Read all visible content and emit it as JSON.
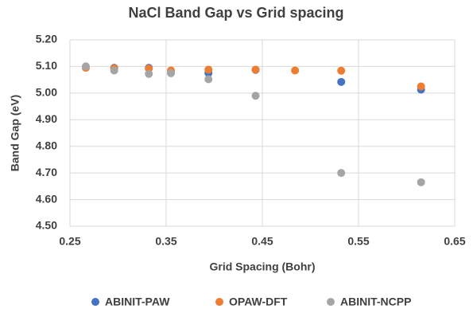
{
  "chart_data": {
    "type": "scatter",
    "title": "NaCl Band Gap vs Grid spacing",
    "xlabel": "Grid Spacing (Bohr)",
    "ylabel": "Band Gap (eV)",
    "xlim": [
      0.25,
      0.65
    ],
    "xticks": [
      0.25,
      0.35,
      0.45,
      0.55,
      0.65
    ],
    "ylim": [
      4.5,
      5.2
    ],
    "yticks": [
      {
        "value": 4.5,
        "label": "4.50"
      },
      {
        "value": 4.6,
        "label": "4.60"
      },
      {
        "value": 4.7,
        "label": "4.70"
      },
      {
        "value": 4.8,
        "label": "4.80"
      },
      {
        "value": 4.9,
        "label": "4.90"
      },
      {
        "value": 5.0,
        "label": "5.00"
      },
      {
        "value": 5.1,
        "label": "5.10"
      },
      {
        "value": 5.2,
        "label": "5.20"
      }
    ],
    "grid": true,
    "legend": "bottom",
    "series": [
      {
        "name": "ABINIT-PAW",
        "color": "#4472c4",
        "x": [
          0.296,
          0.332,
          0.355,
          0.394,
          0.443,
          0.532,
          0.615
        ],
        "values": [
          5.095,
          5.095,
          5.075,
          5.075,
          5.087,
          5.042,
          5.013
        ]
      },
      {
        "name": "OPAW-DFT",
        "color": "#ed7d31",
        "x": [
          0.2665,
          0.296,
          0.332,
          0.355,
          0.394,
          0.443,
          0.484,
          0.532,
          0.615
        ],
        "values": [
          5.095,
          5.093,
          5.092,
          5.085,
          5.088,
          5.088,
          5.085,
          5.084,
          5.025
        ]
      },
      {
        "name": "ABINIT-NCPP",
        "color": "#a5a5a5",
        "x": [
          0.2665,
          0.296,
          0.332,
          0.355,
          0.394,
          0.443,
          0.532,
          0.615
        ],
        "values": [
          5.1,
          5.085,
          5.072,
          5.075,
          5.052,
          4.99,
          4.7,
          4.665
        ]
      }
    ]
  }
}
